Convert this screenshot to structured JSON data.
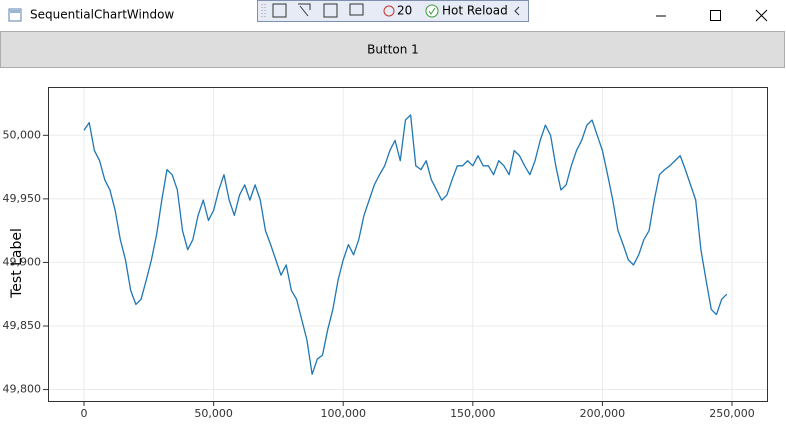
{
  "window": {
    "title": "SequentialChartWindow"
  },
  "toolbar": {
    "count": 20,
    "label": "Hot Reload"
  },
  "button": {
    "label": "Button 1"
  },
  "chart_data": {
    "type": "line",
    "y_label": "Test Label",
    "color": "#1f77b4",
    "grid": true,
    "xlim": [
      -13900,
      263500
    ],
    "ylim": [
      49791,
      50038
    ],
    "xticks": [
      0,
      {
        "value": 50000,
        "label": "50,000"
      },
      {
        "value": 100000,
        "label": "100,000"
      },
      {
        "value": 150000,
        "label": "150,000"
      },
      {
        "value": 200000,
        "label": "200,000"
      },
      {
        "value": 250000,
        "label": "250,000"
      }
    ],
    "yticks": [
      {
        "value": 49800,
        "label": "49,800"
      },
      {
        "value": 49850,
        "label": "49,850"
      },
      {
        "value": 49900,
        "label": "49,900"
      },
      {
        "value": 49950,
        "label": "49,950"
      },
      {
        "value": 50000,
        "label": "50,000"
      }
    ],
    "x": [
      0,
      2000,
      4000,
      6000,
      8000,
      10000,
      12000,
      14000,
      16000,
      18000,
      20000,
      22000,
      24000,
      26000,
      28000,
      30000,
      32000,
      34000,
      36000,
      38000,
      40000,
      42000,
      44000,
      46000,
      48000,
      50000,
      52000,
      54000,
      56000,
      58000,
      60000,
      62000,
      64000,
      66000,
      68000,
      70000,
      72000,
      74000,
      76000,
      78000,
      80000,
      82000,
      84000,
      86000,
      88000,
      90000,
      92000,
      94000,
      96000,
      98000,
      100000,
      102000,
      104000,
      106000,
      108000,
      110000,
      112000,
      114000,
      116000,
      118000,
      120000,
      122000,
      124000,
      126000,
      128000,
      130000,
      132000,
      134000,
      136000,
      138000,
      140000,
      142000,
      144000,
      146000,
      148000,
      150000,
      152000,
      154000,
      156000,
      158000,
      160000,
      162000,
      164000,
      166000,
      168000,
      170000,
      172000,
      174000,
      176000,
      178000,
      180000,
      182000,
      184000,
      186000,
      188000,
      190000,
      192000,
      194000,
      196000,
      198000,
      200000,
      202000,
      204000,
      206000,
      208000,
      210000,
      212000,
      214000,
      216000,
      218000,
      220000,
      222000,
      224000,
      226000,
      228000,
      230000,
      232000,
      234000,
      236000,
      238000,
      240000,
      242000,
      244000,
      246000,
      248000
    ],
    "values": [
      50004,
      50010,
      49988,
      49980,
      49965,
      49957,
      49941,
      49918,
      49902,
      49878,
      49867,
      49871,
      49886,
      49902,
      49922,
      49949,
      49973,
      49969,
      49957,
      49925,
      49910,
      49918,
      49937,
      49949,
      49933,
      49941,
      49957,
      49969,
      49949,
      49937,
      49953,
      49961,
      49949,
      49961,
      49949,
      49925,
      49914,
      49902,
      49890,
      49898,
      49878,
      49871,
      49855,
      49839,
      49812,
      49824,
      49827,
      49847,
      49863,
      49886,
      49902,
      49914,
      49906,
      49918,
      49937,
      49949,
      49961,
      49969,
      49976,
      49988,
      49996,
      49980,
      50012,
      50016,
      49976,
      49973,
      49980,
      49965,
      49957,
      49949,
      49953,
      49965,
      49976,
      49976,
      49980,
      49976,
      49984,
      49976,
      49976,
      49969,
      49980,
      49976,
      49969,
      49988,
      49984,
      49976,
      49969,
      49980,
      49996,
      50008,
      50000,
      49976,
      49957,
      49961,
      49976,
      49988,
      49996,
      50008,
      50012,
      50000,
      49988,
      49969,
      49949,
      49925,
      49914,
      49902,
      49898,
      49906,
      49918,
      49925,
      49949,
      49969,
      49973,
      49976,
      49980,
      49984,
      49973,
      49961,
      49949,
      49910,
      49886,
      49863,
      49859,
      49871,
      49875
    ]
  }
}
